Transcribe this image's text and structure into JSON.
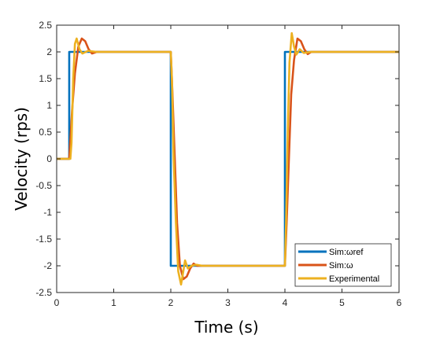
{
  "chart_data": {
    "type": "line",
    "title": "",
    "xlabel": "Time (s)",
    "ylabel": "Velocity (rps)",
    "xlim": [
      0,
      6
    ],
    "ylim": [
      -2.5,
      2.5
    ],
    "xticks": [
      0,
      1,
      2,
      3,
      4,
      5,
      6
    ],
    "xtick_labels": [
      "0",
      "1",
      "2",
      "3",
      "4",
      "5",
      "6"
    ],
    "yticks": [
      -2.5,
      -2,
      -1.5,
      -1,
      -0.5,
      0,
      0.5,
      1,
      1.5,
      2,
      2.5
    ],
    "ytick_labels": [
      "-2.5",
      "-2",
      "-1.5",
      "-1",
      "-0.5",
      "0",
      "0.5",
      "1",
      "1.5",
      "2",
      "2.5"
    ],
    "grid": false,
    "legend_position": "bottom-right",
    "series": [
      {
        "name": "Sim:ωref",
        "color": "#0072BD",
        "x": [
          0,
          0.22,
          0.22,
          2.0,
          2.0,
          4.0,
          4.0,
          6.0
        ],
        "y": [
          0,
          0,
          2,
          2,
          -2,
          -2,
          2,
          2
        ]
      },
      {
        "name": "Sim:ω",
        "color": "#D95319",
        "x": [
          0,
          0.22,
          0.27,
          0.32,
          0.38,
          0.44,
          0.5,
          0.56,
          0.62,
          0.7,
          0.8,
          2.0,
          2.03,
          2.07,
          2.11,
          2.16,
          2.22,
          2.28,
          2.34,
          2.4,
          2.46,
          2.52,
          2.6,
          4.0,
          4.03,
          4.07,
          4.11,
          4.16,
          4.22,
          4.28,
          4.34,
          4.4,
          4.46,
          4.52,
          4.6,
          6.0
        ],
        "y": [
          0,
          0,
          0.9,
          1.6,
          2.1,
          2.25,
          2.2,
          2.05,
          1.97,
          2.0,
          2.0,
          2.0,
          1.2,
          0.0,
          -1.2,
          -2.0,
          -2.25,
          -2.2,
          -2.05,
          -1.96,
          -2.0,
          -2.0,
          -2.0,
          -2.0,
          -1.2,
          0.0,
          1.2,
          1.85,
          2.25,
          2.2,
          2.05,
          1.96,
          2.0,
          2.0,
          2.0,
          2.0
        ]
      },
      {
        "name": "Experimental",
        "color": "#EDB120",
        "x": [
          0,
          0.24,
          0.26,
          0.29,
          0.32,
          0.35,
          0.4,
          0.45,
          0.55,
          0.7,
          2.0,
          2.02,
          2.05,
          2.09,
          2.13,
          2.18,
          2.22,
          2.25,
          2.3,
          2.36,
          2.45,
          2.55,
          4.0,
          4.02,
          4.05,
          4.08,
          4.12,
          4.16,
          4.2,
          4.26,
          4.33,
          4.45,
          4.55,
          6.0
        ],
        "y": [
          0,
          0,
          0.3,
          1.5,
          2.15,
          2.25,
          2.05,
          1.97,
          2.02,
          2.0,
          2.0,
          1.5,
          0.0,
          -1.2,
          -2.1,
          -2.35,
          -2.1,
          -1.9,
          -2.05,
          -2.0,
          -1.98,
          -2.0,
          -2.0,
          -1.2,
          0.5,
          1.8,
          2.35,
          2.1,
          1.95,
          2.05,
          1.98,
          2.0,
          2.0,
          2.0
        ]
      }
    ]
  }
}
